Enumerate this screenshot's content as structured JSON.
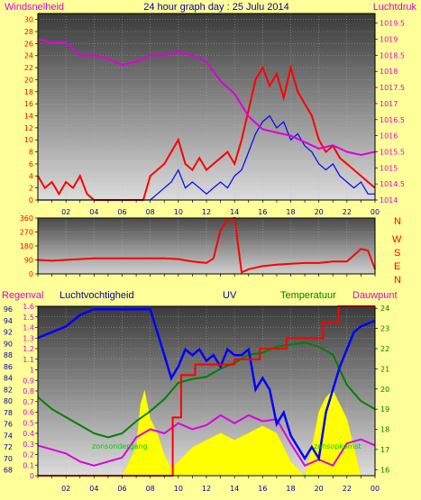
{
  "header": {
    "left_label": "Windsnelheid",
    "title": "24 hour graph day : 25 Julu 2014",
    "right_label": "Luchtdruk"
  },
  "bottom_header": {
    "regenval": "Regenval",
    "luchtvochtigheid": "Luchtvochtigheid",
    "uv": "UV",
    "temperatuur": "Temperatuur",
    "dauwpunt": "Dauwpunt"
  },
  "wind_dir_letters": [
    "N",
    "W",
    "S",
    "E",
    "N"
  ],
  "colors": {
    "windspeed": "#ff0000",
    "gust": "#0000ff",
    "pressure": "#dd00dd",
    "winddir": "#ff0000",
    "humidity": "#0000ff",
    "temperature": "#008000",
    "dewpoint": "#dd00dd",
    "uv": "#ffff00",
    "rain": "#ff0000",
    "hour_labels": "#0000aa"
  },
  "chart_data": [
    {
      "type": "line",
      "title": "24 hour graph day : 25 Julu 2014",
      "x_ticks": [
        "02",
        "04",
        "06",
        "08",
        "10",
        "12",
        "14",
        "16",
        "18",
        "20",
        "22",
        "00"
      ],
      "y_left": {
        "label": "Windsnelheid",
        "ticks": [
          0,
          2,
          4,
          6,
          8,
          10,
          12,
          14,
          16,
          18,
          20,
          22,
          24,
          26,
          28,
          30
        ],
        "range": [
          0,
          31
        ]
      },
      "y_right": {
        "label": "Luchtdruk",
        "ticks": [
          1014,
          1014.5,
          1015,
          1015.5,
          1016,
          1016.5,
          1017,
          1017.5,
          1018,
          1018.5,
          1019,
          1019.5
        ],
        "range": [
          1014,
          1019.8
        ]
      },
      "series": [
        {
          "name": "Windsnelheid",
          "axis": "left",
          "x": [
            0,
            0.5,
            1,
            1.5,
            2,
            2.5,
            3,
            3.5,
            4,
            5,
            6,
            7,
            7.5,
            8,
            8.5,
            9,
            9.5,
            10,
            10.5,
            11,
            11.5,
            12,
            12.5,
            13,
            13.5,
            14,
            14.5,
            15,
            15.5,
            16,
            16.5,
            17,
            17.5,
            18,
            18.5,
            19,
            19.5,
            20,
            20.5,
            21,
            21.5,
            22,
            22.5,
            23,
            23.5,
            24
          ],
          "y": [
            4,
            2,
            3,
            1,
            3,
            2,
            4,
            1,
            0,
            0,
            0,
            0,
            0,
            4,
            5,
            6,
            8,
            10,
            6,
            5,
            7,
            5,
            6,
            7,
            8,
            6,
            10,
            15,
            20,
            22,
            19,
            21,
            17,
            22,
            18,
            16,
            14,
            10,
            8,
            9,
            7,
            6,
            5,
            4,
            3,
            2
          ]
        },
        {
          "name": "Windstoten",
          "axis": "left",
          "x": [
            0,
            1,
            2,
            3,
            4,
            5,
            6,
            7,
            8,
            8.5,
            9,
            9.5,
            10,
            10.5,
            11,
            11.5,
            12,
            12.5,
            13,
            13.5,
            14,
            14.5,
            15,
            15.5,
            16,
            16.5,
            17,
            17.5,
            18,
            18.5,
            19,
            19.5,
            20,
            20.5,
            21,
            21.5,
            22,
            22.5,
            23,
            23.5,
            24
          ],
          "y": [
            0,
            0,
            0,
            0,
            0,
            0,
            0,
            0,
            0,
            1,
            2,
            3,
            5,
            2,
            3,
            2,
            1,
            2,
            3,
            2,
            4,
            5,
            8,
            11,
            13,
            14,
            12,
            13,
            10,
            11,
            9,
            8,
            6,
            5,
            6,
            4,
            3,
            2,
            3,
            1,
            1
          ]
        },
        {
          "name": "Luchtdruk",
          "axis": "right",
          "x": [
            0,
            1,
            2,
            3,
            4,
            5,
            6,
            7,
            8,
            9,
            10,
            11,
            12,
            13,
            14,
            15,
            16,
            17,
            18,
            19,
            20,
            21,
            22,
            23,
            24
          ],
          "y": [
            1019,
            1018.9,
            1018.9,
            1018.5,
            1018.5,
            1018.4,
            1018.2,
            1018.3,
            1018.5,
            1018.5,
            1018.6,
            1018.5,
            1018.3,
            1017.7,
            1017.3,
            1016.6,
            1016.2,
            1016.1,
            1016,
            1015.8,
            1015.6,
            1015.7,
            1015.5,
            1015.4,
            1015.5
          ]
        }
      ]
    },
    {
      "type": "line",
      "title": "",
      "y_left": {
        "ticks": [
          0,
          90,
          180,
          270,
          360
        ],
        "range": [
          0,
          360
        ]
      },
      "y_right": {
        "ticks": [
          "N",
          "W",
          "S",
          "E",
          "N"
        ]
      },
      "series": [
        {
          "name": "Windrichting",
          "x": [
            0,
            1,
            2,
            3,
            4,
            5,
            6,
            7,
            8,
            9,
            10,
            11,
            12,
            12.5,
            13,
            13.5,
            14,
            14.5,
            15,
            16,
            17,
            18,
            19,
            20,
            21,
            22,
            23,
            23.5,
            24
          ],
          "y": [
            90,
            85,
            90,
            95,
            100,
            100,
            100,
            100,
            100,
            100,
            95,
            80,
            70,
            100,
            280,
            350,
            360,
            10,
            30,
            50,
            60,
            65,
            70,
            70,
            80,
            80,
            160,
            150,
            30
          ]
        }
      ]
    },
    {
      "type": "line",
      "title": "",
      "x_ticks": [
        "02",
        "04",
        "06",
        "08",
        "10",
        "12",
        "14",
        "16",
        "18",
        "20",
        "22",
        "00"
      ],
      "y_left_outer": {
        "label": "Regenval",
        "ticks": [
          0,
          0.1,
          0.2,
          0.3,
          0.4,
          0.5,
          0.6,
          0.7,
          0.8,
          0.9,
          1,
          1.1,
          1.2,
          1.3,
          1.4,
          1.5,
          1.6
        ],
        "range": [
          0,
          1.6
        ]
      },
      "y_left_inner": {
        "label": "Luchtvochtigheid",
        "ticks": [
          68,
          70,
          72,
          74,
          76,
          78,
          80,
          82,
          84,
          86,
          88,
          90,
          92,
          94,
          96
        ],
        "range": [
          67,
          96.5
        ]
      },
      "y_right": {
        "label": "Temperatuur / Dauwpunt",
        "ticks": [
          16,
          17,
          18,
          19,
          20,
          21,
          22,
          23,
          24
        ],
        "range": [
          15.7,
          24.1
        ]
      },
      "y_uv": {
        "label": "UV"
      },
      "annotations": [
        "zonsondergang",
        "zonsopkomst"
      ],
      "series": [
        {
          "name": "Luchtvochtigheid",
          "axis": "humidity",
          "x": [
            0,
            1,
            2,
            3,
            4,
            5,
            6,
            7,
            8,
            9,
            9.5,
            10,
            10.5,
            11,
            11.5,
            12,
            12.5,
            13,
            13.5,
            14,
            14.5,
            15,
            15.5,
            16,
            16.5,
            17,
            17.5,
            18,
            18.5,
            19,
            19.5,
            20,
            20.5,
            21,
            21.5,
            22,
            22.5,
            23,
            24
          ],
          "y": [
            91,
            92,
            93,
            95,
            96,
            96,
            96,
            96,
            96,
            88,
            84,
            86,
            89,
            88,
            89,
            87,
            88,
            86,
            89,
            88,
            88,
            89,
            82,
            84,
            82,
            76,
            78,
            74,
            72,
            70,
            72,
            70,
            78,
            82,
            86,
            89,
            92,
            93,
            94
          ]
        },
        {
          "name": "Temperatuur",
          "axis": "temp",
          "x": [
            0,
            1,
            2,
            3,
            4,
            5,
            6,
            7,
            8,
            9,
            10,
            11,
            12,
            13,
            14,
            15,
            16,
            17,
            18,
            19,
            20,
            21,
            22,
            23,
            24
          ],
          "y": [
            19.6,
            19.0,
            18.6,
            18.2,
            17.8,
            17.6,
            17.8,
            18.4,
            18.9,
            19.5,
            20.3,
            20.5,
            20.6,
            21.0,
            21.3,
            21.7,
            21.8,
            22.1,
            22.2,
            22.3,
            22.1,
            21.7,
            20.2,
            19.4,
            19.0
          ]
        },
        {
          "name": "Dauwpunt",
          "axis": "temp",
          "x": [
            0,
            1,
            2,
            3,
            4,
            5,
            6,
            7,
            8,
            9,
            10,
            11,
            12,
            13,
            14,
            15,
            16,
            17,
            18,
            19,
            20,
            21,
            22,
            23,
            24
          ],
          "y": [
            17.2,
            17.0,
            16.8,
            16.4,
            16.2,
            16.4,
            16.6,
            17.6,
            18.0,
            17.8,
            18.3,
            18.0,
            18.2,
            18.7,
            18.3,
            18.7,
            18.4,
            18.5,
            17.3,
            16.2,
            16.5,
            16.2,
            17.3,
            17.5,
            17.2
          ]
        },
        {
          "name": "Regenval",
          "axis": "rain",
          "x": [
            0,
            9.6,
            9.6,
            10.2,
            10.2,
            11.2,
            11.2,
            14.0,
            14.0,
            15.8,
            15.8,
            17.7,
            17.7,
            20.3,
            20.3,
            21.4,
            21.4,
            24
          ],
          "y": [
            0,
            0,
            0.55,
            0.55,
            0.95,
            0.95,
            1.05,
            1.05,
            1.1,
            1.1,
            1.2,
            1.2,
            1.3,
            1.3,
            1.45,
            1.45,
            1.6,
            1.6
          ]
        },
        {
          "name": "UV",
          "axis": "uv",
          "x": [
            6,
            6.5,
            7,
            7.3,
            7.6,
            8,
            8.5,
            9,
            9.5,
            10,
            11,
            12,
            13,
            14,
            15,
            16,
            17,
            18,
            18.5,
            19,
            19.5,
            20,
            20.5,
            21,
            21.5,
            22,
            22.5,
            23
          ],
          "y": [
            0,
            0.1,
            0.2,
            0.5,
            0.6,
            0.4,
            0.3,
            0.15,
            0.05,
            0.1,
            0.2,
            0.25,
            0.3,
            0.25,
            0.3,
            0.35,
            0.3,
            0.1,
            0.05,
            0,
            0.2,
            0.45,
            0.55,
            0.6,
            0.5,
            0.4,
            0.2,
            0
          ]
        }
      ]
    }
  ]
}
